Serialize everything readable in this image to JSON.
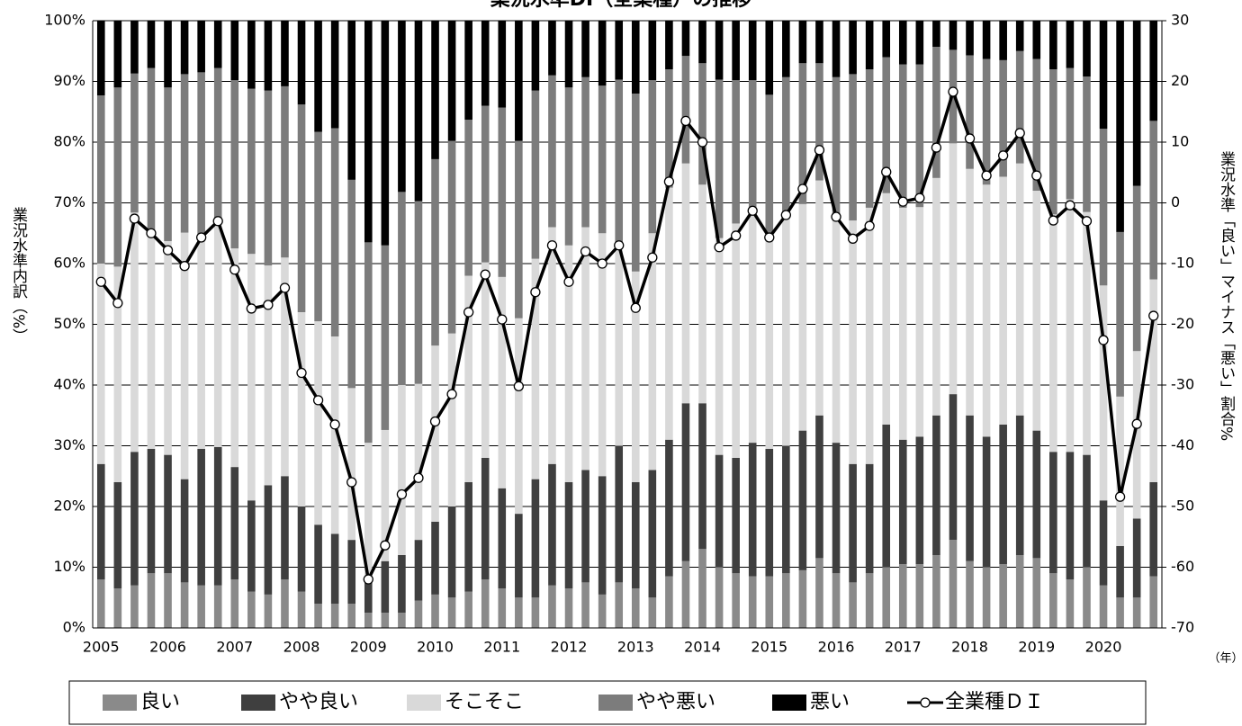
{
  "chart_data": {
    "type": "bar",
    "stacked": true,
    "title": "業況水準DI（全業種）の推移",
    "y_label": "業況水準内訳（%）",
    "y2_label": "業況水準「良い」マイナス「悪い」割合%",
    "x_unit": "（年）",
    "categories": [
      "2005",
      null,
      null,
      null,
      "2006",
      null,
      null,
      null,
      "2007",
      null,
      null,
      null,
      "2008",
      null,
      null,
      null,
      "2009",
      null,
      null,
      null,
      "2010",
      null,
      null,
      null,
      "2011",
      null,
      null,
      null,
      "2012",
      null,
      null,
      null,
      "2013",
      null,
      null,
      null,
      "2014",
      null,
      null,
      null,
      "2015",
      null,
      null,
      null,
      "2016",
      null,
      null,
      null,
      "2017",
      null,
      null,
      null,
      "2018",
      null,
      null,
      null,
      "2019",
      null,
      null,
      null,
      "2020",
      null,
      null,
      null
    ],
    "series": [
      {
        "name": "良い",
        "color": "#8a8a8a",
        "values": [
          8,
          6.5,
          7,
          9,
          9,
          7.5,
          7,
          7,
          8,
          6,
          5.5,
          8,
          6,
          4,
          4,
          4,
          2.5,
          2.5,
          2.5,
          4.5,
          5.5,
          5,
          6,
          8,
          6.5,
          5,
          5,
          7,
          6.5,
          7.5,
          5.5,
          7.5,
          6.5,
          5,
          8.5,
          11,
          13,
          10,
          9,
          8.5,
          8.5,
          9,
          9.5,
          11.5,
          9,
          7.5,
          9,
          10,
          10.5,
          10.5,
          12,
          14.5,
          11,
          10,
          10.5,
          12,
          11.5,
          9,
          8,
          10,
          7,
          5,
          5,
          8.5
        ]
      },
      {
        "name": "やや良い",
        "color": "#3f3f3f",
        "values": [
          19,
          17.5,
          22,
          20.5,
          19.5,
          17,
          22.5,
          22.8,
          18.5,
          15,
          18,
          17,
          14,
          13,
          11.5,
          10.5,
          5,
          8.5,
          9.5,
          10,
          12,
          15,
          18,
          20,
          16.5,
          13.8,
          19.5,
          20,
          17.5,
          18.5,
          19.5,
          22.5,
          17.5,
          21,
          22.5,
          26,
          24,
          18.5,
          19,
          22,
          21,
          21,
          23,
          23.5,
          21.5,
          19.5,
          18,
          23.5,
          20.5,
          21,
          23,
          24,
          24,
          21.5,
          23,
          23,
          21,
          20,
          21,
          18.5,
          14,
          8.5,
          13,
          15.5
        ]
      },
      {
        "name": "そこそこ",
        "color": "#d9d9d9",
        "values": [
          33,
          35.5,
          39.4,
          36,
          35.2,
          40.6,
          35.3,
          37.4,
          36,
          40.6,
          36.2,
          36,
          32,
          33.5,
          32.5,
          25,
          23,
          21.6,
          28,
          25.7,
          29,
          28.5,
          34,
          32.2,
          34.8,
          32.2,
          36.3,
          39,
          39,
          40,
          40,
          33,
          34.7,
          39,
          41.5,
          39.5,
          36,
          35.7,
          38.6,
          37.7,
          35.3,
          38,
          37.3,
          38.7,
          36.7,
          40.1,
          42.2,
          38.1,
          38.2,
          37.8,
          39.1,
          41.3,
          40.6,
          41.5,
          40.8,
          41.5,
          39.5,
          39.1,
          41.6,
          40,
          35.4,
          24.6,
          27.6,
          33.4
        ]
      },
      {
        "name": "やや悪い",
        "color": "#7c7c7c",
        "values": [
          27.7,
          29.5,
          22.9,
          26.7,
          25.3,
          26.1,
          26.7,
          25,
          27.7,
          27.2,
          28.8,
          28.2,
          34.2,
          31.2,
          34.3,
          34.3,
          33,
          30.4,
          31.8,
          30.1,
          30.7,
          31.7,
          25.7,
          25.8,
          27.9,
          29.2,
          27.7,
          25,
          26,
          24.7,
          24.3,
          27.3,
          29.3,
          25.2,
          19.5,
          17.7,
          20,
          26.1,
          23.6,
          22,
          23,
          22.7,
          23.2,
          19.3,
          23.5,
          24.1,
          22.8,
          22.4,
          23.6,
          23.5,
          21.6,
          15.4,
          18.7,
          20.7,
          19.2,
          18.5,
          21.7,
          23.9,
          21.6,
          22.3,
          25.8,
          27.1,
          27.2,
          26.1
        ]
      },
      {
        "name": "悪い",
        "color": "#000000",
        "values": [
          12.3,
          11,
          8.7,
          7.8,
          11,
          8.8,
          8.5,
          7.8,
          9.8,
          11.2,
          11.5,
          10.8,
          13.8,
          18.3,
          17.7,
          26.2,
          36.5,
          37,
          28.2,
          29.7,
          22.8,
          19.8,
          16.3,
          14,
          14.3,
          19.8,
          11.5,
          9,
          11,
          9.3,
          10.7,
          9.7,
          12,
          9.8,
          8,
          5.8,
          7,
          9.7,
          9.8,
          9.8,
          12.2,
          9.3,
          7,
          7,
          9.3,
          8.8,
          8,
          6,
          7.2,
          7.2,
          4.3,
          4.8,
          5.7,
          6.3,
          6.5,
          5,
          6.3,
          8,
          7.8,
          9.2,
          17.8,
          34.8,
          27.2,
          16.5
        ]
      },
      {
        "name": "全業種ＤＩ",
        "type": "line",
        "axis": "y2",
        "color": "#000000",
        "values": [
          -13,
          -16.5,
          -2.6,
          -5,
          -7.8,
          -10.4,
          -5.7,
          -3,
          -11,
          -17.4,
          -16.8,
          -14,
          -28,
          -32.5,
          -36.5,
          -46,
          -62,
          -56.4,
          -48,
          -45.3,
          -36,
          -31.5,
          -18,
          -11.8,
          -19.2,
          -30.2,
          -14.7,
          -7,
          -13,
          -8,
          -10,
          -7,
          -17.3,
          -9,
          3.5,
          13.5,
          10,
          -7.3,
          -5.4,
          -1.3,
          -5.7,
          -2,
          2.3,
          8.7,
          -2.3,
          -5.9,
          -3.8,
          5.1,
          0.2,
          0.8,
          9.1,
          18.3,
          10.6,
          4.5,
          7.8,
          11.5,
          4.5,
          -2.9,
          -0.4,
          -3,
          -22.6,
          -48.4,
          -36.4,
          -18.6
        ]
      }
    ],
    "ylim": [
      0,
      100
    ],
    "yticks": [
      {
        "value": 0,
        "label": "0%"
      },
      {
        "value": 10,
        "label": "10%"
      },
      {
        "value": 20,
        "label": "20%"
      },
      {
        "value": 30,
        "label": "30%"
      },
      {
        "value": 40,
        "label": "40%"
      },
      {
        "value": 50,
        "label": "50%"
      },
      {
        "value": 60,
        "label": "60%"
      },
      {
        "value": 70,
        "label": "70%"
      },
      {
        "value": 80,
        "label": "80%"
      },
      {
        "value": 90,
        "label": "90%"
      },
      {
        "value": 100,
        "label": "100%"
      }
    ],
    "y2lim": [
      -70,
      30
    ],
    "y2ticks": [
      -70,
      -60,
      -50,
      -40,
      -30,
      -20,
      -10,
      0,
      10,
      20,
      30
    ],
    "grid": true,
    "legend": "bottom"
  }
}
